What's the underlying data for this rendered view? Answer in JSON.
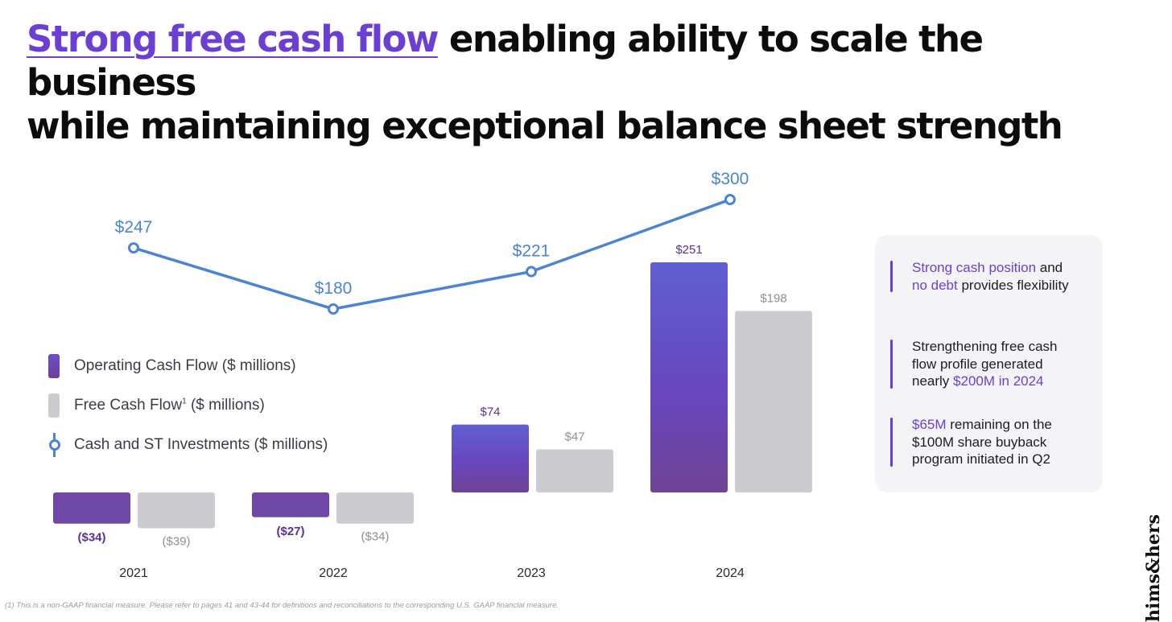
{
  "title": {
    "highlight": "Strong free cash flow",
    "rest_line1": " enabling ability to scale the business",
    "line2": "while maintaining exceptional balance sheet strength"
  },
  "legend": {
    "op": "Operating Cash Flow ($ millions)",
    "fcf_main": "Free Cash Flow",
    "fcf_sup": "1",
    "fcf_unit": " ($ millions)",
    "cash": "Cash and ST Investments ($ millions)"
  },
  "chart_data": {
    "type": "bar",
    "categories": [
      "2021",
      "2022",
      "2023",
      "2024"
    ],
    "series": [
      {
        "name": "Operating Cash Flow ($ millions)",
        "values": [
          -34,
          -27,
          74,
          251
        ],
        "labels": [
          "($34)",
          "($27)",
          "$74",
          "$251"
        ],
        "color": "#6a4fc8"
      },
      {
        "name": "Free Cash Flow ($ millions)",
        "values": [
          -39,
          -34,
          47,
          198
        ],
        "labels": [
          "($39)",
          "($34)",
          "$47",
          "$198"
        ],
        "color": "#cbcbd0"
      },
      {
        "name": "Cash and ST Investments ($ millions)",
        "type": "line",
        "values": [
          247,
          180,
          221,
          300
        ],
        "labels": [
          "$247",
          "$180",
          "$221",
          "$300"
        ],
        "color": "#4a84d4"
      }
    ],
    "colors": {
      "op_label": "#5a2f98",
      "fcf_label": "#8e8e96",
      "line": "#4a84d4",
      "axis_label": "#2a2a30"
    }
  },
  "notes": [
    {
      "parts": [
        {
          "t": "Strong cash position",
          "p": true
        },
        {
          "t": " and ",
          "p": false
        },
        {
          "t": "no debt",
          "p": true
        },
        {
          "t": " provides flexibility",
          "p": false
        }
      ]
    },
    {
      "parts": [
        {
          "t": "Strengthening free cash flow profile generated nearly ",
          "p": false
        },
        {
          "t": "$200M in 2024",
          "p": true
        }
      ]
    },
    {
      "parts": [
        {
          "t": "$65M",
          "p": true
        },
        {
          "t": " remaining on the $100M share buyback program initiated in Q2",
          "p": false
        }
      ]
    }
  ],
  "footnote": "(1) This is a non-GAAP financial measure. Please refer to pages 41 and 43-44 for definitions and reconciliations to the corresponding U.S. GAAP financial measure.",
  "logo": "hims&hers"
}
